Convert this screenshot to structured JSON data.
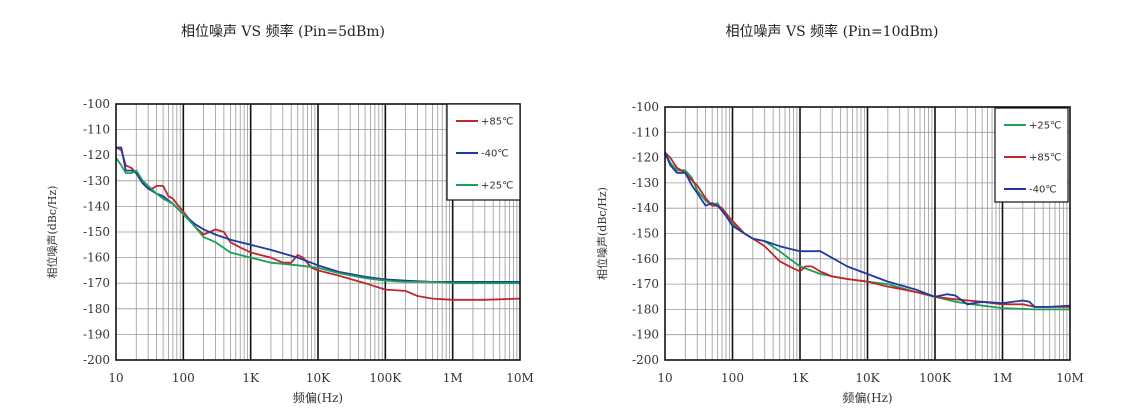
{
  "chart_data": [
    {
      "type": "line",
      "title": "相位噪声 VS 频率 (Pin=5dBm)",
      "xlabel": "频偏(Hz)",
      "ylabel": "相位噪声(dBc/Hz)",
      "xscale": "log",
      "xlim": [
        10,
        10000000
      ],
      "ylim": [
        -200,
        -100
      ],
      "grid": true,
      "legend_position": "top-right",
      "x_tick_labels": [
        "10",
        "100",
        "1K",
        "10K",
        "100K",
        "1M",
        "10M"
      ],
      "y_tick_labels": [
        "-100",
        "-110",
        "-120",
        "-130",
        "-140",
        "-150",
        "-160",
        "-170",
        "-180",
        "-190",
        "-200"
      ],
      "series": [
        {
          "name": "+85℃",
          "color": "#c0272d",
          "x": [
            10,
            12,
            14,
            17,
            20,
            25,
            30,
            35,
            40,
            50,
            60,
            70,
            80,
            100,
            150,
            200,
            300,
            400,
            500,
            700,
            1000,
            2000,
            3000,
            4000,
            5000,
            6000,
            8000,
            10000,
            20000,
            50000,
            100000,
            200000,
            300000,
            500000,
            1000000,
            3000000,
            10000000
          ],
          "y": [
            -117,
            -118,
            -124,
            -125,
            -127,
            -131,
            -133,
            -133,
            -132,
            -132,
            -136,
            -137,
            -139,
            -142,
            -148,
            -151,
            -149,
            -150,
            -154,
            -156,
            -158,
            -160,
            -162,
            -162,
            -159,
            -160,
            -164,
            -165,
            -167,
            -170,
            -172.5,
            -173,
            -175,
            -176,
            -176.5,
            -176.5,
            -176
          ]
        },
        {
          "name": "-40℃",
          "color": "#1f3a9e",
          "x": [
            10,
            12,
            14,
            17,
            20,
            25,
            30,
            40,
            50,
            70,
            100,
            150,
            200,
            300,
            500,
            1000,
            2000,
            5000,
            10000,
            20000,
            50000,
            100000,
            200000,
            500000,
            1000000,
            3000000,
            10000000
          ],
          "y": [
            -117,
            -117,
            -126,
            -126,
            -127,
            -131,
            -133,
            -135,
            -136,
            -139,
            -143,
            -147,
            -149,
            -151,
            -153,
            -155,
            -157,
            -160,
            -163,
            -165.5,
            -167.5,
            -168.5,
            -169,
            -169.5,
            -169.5,
            -169.5,
            -169.5
          ]
        },
        {
          "name": "+25℃",
          "color": "#1e9e5a",
          "x": [
            10,
            12,
            14,
            17,
            20,
            25,
            30,
            40,
            50,
            70,
            100,
            150,
            200,
            300,
            500,
            700,
            1000,
            2000,
            5000,
            10000,
            20000,
            50000,
            100000,
            200000,
            500000,
            1000000,
            3000000,
            10000000
          ],
          "y": [
            -121,
            -124,
            -127,
            -127,
            -126,
            -130,
            -132,
            -135,
            -137,
            -139,
            -143,
            -148,
            -152,
            -154,
            -158,
            -159,
            -160,
            -162,
            -163,
            -164,
            -166,
            -168,
            -169,
            -169.5,
            -169.5,
            -170,
            -170,
            -170
          ]
        }
      ]
    },
    {
      "type": "line",
      "title": "相位噪声 VS 频率 (Pin=10dBm)",
      "xlabel": "频偏(Hz)",
      "ylabel": "相位噪声(dBc/Hz)",
      "xscale": "log",
      "xlim": [
        10,
        10000000
      ],
      "ylim": [
        -200,
        -100
      ],
      "grid": true,
      "legend_position": "top-right",
      "x_tick_labels": [
        "10",
        "100",
        "1K",
        "10K",
        "100K",
        "1M",
        "10M"
      ],
      "y_tick_labels": [
        "-100",
        "-110",
        "-120",
        "-130",
        "-140",
        "-150",
        "-160",
        "-170",
        "-180",
        "-190",
        "-200"
      ],
      "series": [
        {
          "name": "+25℃",
          "color": "#1e9e5a",
          "x": [
            10,
            12,
            15,
            20,
            25,
            30,
            40,
            50,
            60,
            70,
            80,
            100,
            150,
            200,
            300,
            500,
            700,
            1000,
            2000,
            5000,
            10000,
            20000,
            50000,
            100000,
            200000,
            500000,
            1000000,
            3000000,
            10000000
          ],
          "y": [
            -118,
            -122,
            -125,
            -125,
            -128,
            -133,
            -137,
            -139,
            -138,
            -141,
            -143,
            -146,
            -150,
            -152,
            -153,
            -157,
            -160,
            -163,
            -166,
            -168,
            -169,
            -170,
            -173,
            -175,
            -177,
            -178.5,
            -179.5,
            -180,
            -180
          ]
        },
        {
          "name": "+85℃",
          "color": "#c0272d",
          "x": [
            10,
            12,
            15,
            20,
            25,
            30,
            40,
            50,
            60,
            70,
            80,
            100,
            150,
            200,
            300,
            500,
            700,
            1000,
            1200,
            1500,
            2000,
            3000,
            5000,
            10000,
            20000,
            50000,
            100000,
            200000,
            500000,
            1000000,
            2000000,
            3000000,
            10000000
          ],
          "y": [
            -118,
            -120,
            -124,
            -126,
            -129,
            -131,
            -136,
            -139,
            -139,
            -140,
            -142,
            -145,
            -150,
            -152,
            -155,
            -161,
            -163,
            -165,
            -163,
            -163,
            -165,
            -167,
            -168,
            -169,
            -171,
            -173,
            -175,
            -176,
            -177,
            -178,
            -178,
            -179,
            -179
          ]
        },
        {
          "name": "-40℃",
          "color": "#1f3a9e",
          "x": [
            10,
            12,
            15,
            20,
            25,
            30,
            40,
            50,
            60,
            70,
            80,
            100,
            150,
            200,
            300,
            500,
            700,
            1000,
            2000,
            5000,
            10000,
            20000,
            50000,
            100000,
            150000,
            200000,
            300000,
            500000,
            1000000,
            2000000,
            2500000,
            3000000,
            5000000,
            10000000
          ],
          "y": [
            -118,
            -123,
            -126,
            -126,
            -131,
            -134,
            -139,
            -138,
            -139,
            -141,
            -143,
            -147,
            -150,
            -152,
            -153,
            -155,
            -156,
            -157,
            -157,
            -163,
            -166,
            -169,
            -172,
            -175,
            -174,
            -174.5,
            -178,
            -177,
            -177.5,
            -176.5,
            -177,
            -179,
            -179,
            -178.5
          ]
        }
      ]
    }
  ]
}
